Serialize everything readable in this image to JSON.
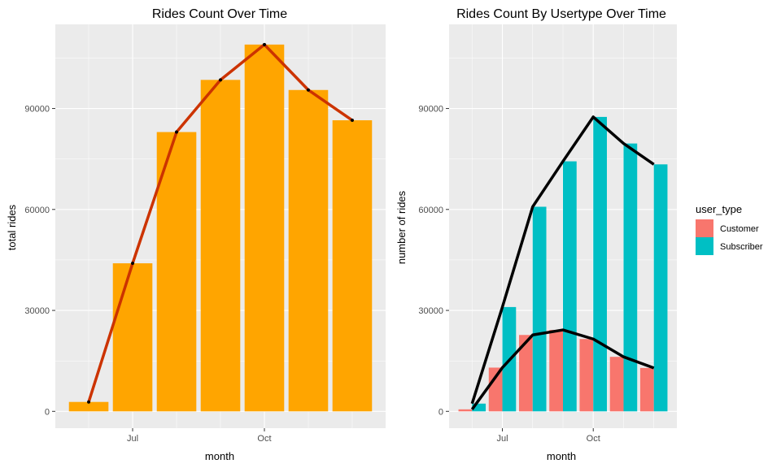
{
  "chart_data": [
    {
      "type": "bar",
      "title": "Rides Count Over Time",
      "xlabel": "month",
      "ylabel": "total rides",
      "x_tick_labels": [
        "Jul",
        "Oct"
      ],
      "y_ticks": [
        0,
        30000,
        60000,
        90000
      ],
      "y_tick_labels": [
        "0",
        "30000",
        "60000",
        "90000"
      ],
      "ylim": [
        -5000,
        115000
      ],
      "grid": true,
      "bar_color": "#FFA500",
      "line_color": "#CC3300",
      "categories": [
        "2019-06",
        "2019-07",
        "2019-08",
        "2019-09",
        "2019-10",
        "2019-11",
        "2019-12"
      ],
      "values": [
        2800,
        44000,
        83000,
        98500,
        109000,
        95500,
        86500
      ],
      "line_overlay": true
    },
    {
      "type": "bar",
      "title": "Rides Count By Usertype Over Time",
      "xlabel": "month",
      "ylabel": "number of rides",
      "x_tick_labels": [
        "Jul",
        "Oct"
      ],
      "y_ticks": [
        0,
        30000,
        60000,
        90000
      ],
      "y_tick_labels": [
        "0",
        "30000",
        "60000",
        "90000"
      ],
      "ylim": [
        -5000,
        115000
      ],
      "grid": true,
      "legend": {
        "title": "user_type",
        "position": "right"
      },
      "categories": [
        "2019-06",
        "2019-07",
        "2019-08",
        "2019-09",
        "2019-10",
        "2019-11",
        "2019-12"
      ],
      "series": [
        {
          "name": "Customer",
          "color": "#F8766D",
          "values": [
            600,
            13000,
            22700,
            24200,
            21500,
            16200,
            12900
          ]
        },
        {
          "name": "Subscriber",
          "color": "#00BFC4",
          "values": [
            2300,
            31000,
            60800,
            74300,
            87500,
            79600,
            73400
          ]
        }
      ],
      "line_overlay": true,
      "line_color": "#000000"
    }
  ]
}
